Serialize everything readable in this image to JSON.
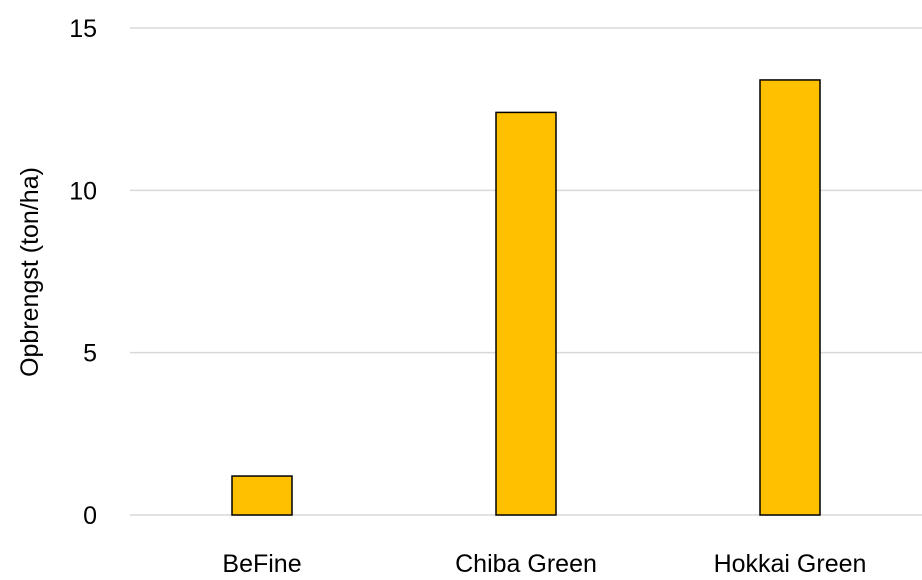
{
  "chart_data": {
    "type": "bar",
    "title": "",
    "xlabel": "",
    "ylabel": "Opbrengst (ton/ha)",
    "categories": [
      "BeFine",
      "Chiba Green",
      "Hokkai Green"
    ],
    "values": [
      1.2,
      12.4,
      13.4
    ],
    "ylim": [
      0,
      15
    ],
    "yticks": [
      "0",
      "5",
      "10",
      "15"
    ],
    "grid": true,
    "legend": "none",
    "colors": {
      "bar": "#FFC000",
      "bar_edge": "#000000",
      "grid": "#D9D9D9"
    }
  }
}
